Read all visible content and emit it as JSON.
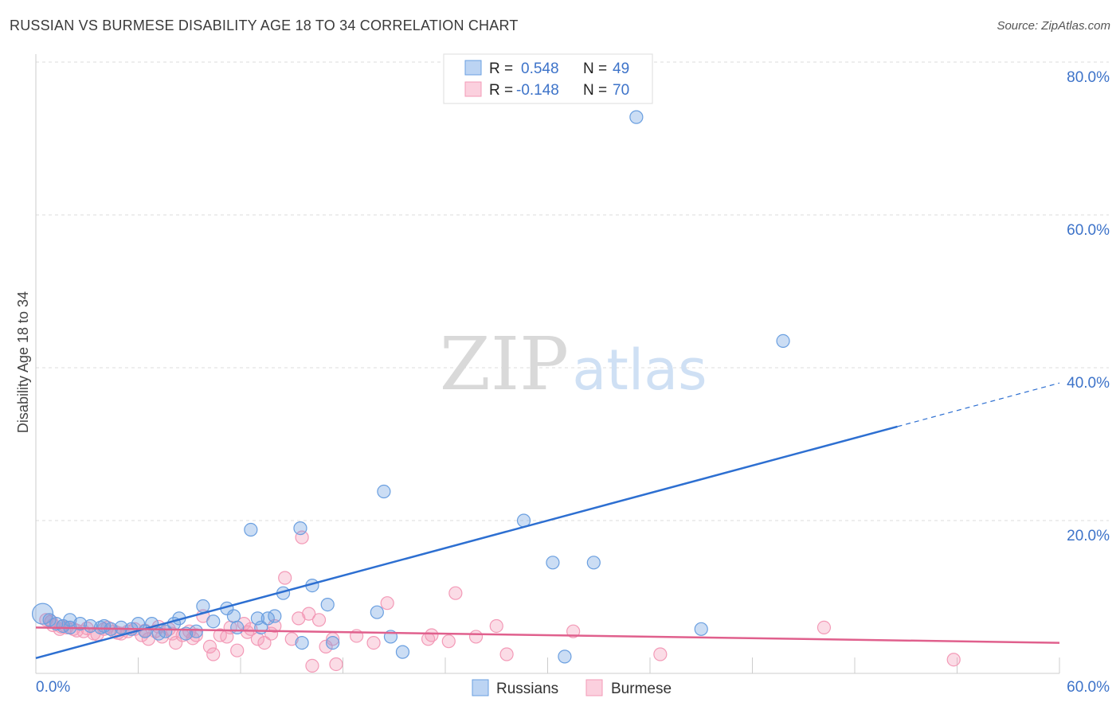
{
  "title": "RUSSIAN VS BURMESE DISABILITY AGE 18 TO 34 CORRELATION CHART",
  "source": "Source: ZipAtlas.com",
  "watermark": {
    "zip": "ZIP",
    "atlas": "atlas"
  },
  "legend_top": {
    "rows": [
      {
        "r_label": "R =",
        "r_value": "0.548",
        "n_label": "N =",
        "n_value": "49"
      },
      {
        "r_label": "R =",
        "r_value": "-0.148",
        "n_label": "N =",
        "n_value": "70"
      }
    ]
  },
  "legend_bottom": {
    "items": [
      "Russians",
      "Burmese"
    ]
  },
  "chart_data": {
    "type": "scatter",
    "title": "RUSSIAN VS BURMESE DISABILITY AGE 18 TO 34 CORRELATION CHART",
    "xlabel": "",
    "ylabel": "Disability Age 18 to 34",
    "xlim": [
      0,
      60
    ],
    "ylim": [
      0,
      80
    ],
    "x_tick_labels": {
      "min": "0.0%",
      "max": "60.0%"
    },
    "y_tick_values": [
      20,
      40,
      60,
      80
    ],
    "y_tick_labels": [
      "20.0%",
      "40.0%",
      "60.0%",
      "80.0%"
    ],
    "colors": {
      "russians": "#6a9fe0",
      "russians_line": "#2d6fd1",
      "burmese": "#f39ab7",
      "burmese_line": "#e0608d",
      "axis_label": "#3d73c9",
      "grid": "#dcdcdc"
    },
    "series": [
      {
        "name": "Russians",
        "r": 0.548,
        "n": 49,
        "trend": {
          "x0": 0,
          "y0": 2.0,
          "x1": 60,
          "y1": 38.0,
          "solid_until": 50.5
        },
        "points": [
          [
            0.4,
            7.8
          ],
          [
            0.8,
            7.0
          ],
          [
            1.2,
            6.5
          ],
          [
            1.6,
            6.2
          ],
          [
            2.0,
            6.0
          ],
          [
            2.6,
            6.5
          ],
          [
            3.2,
            6.2
          ],
          [
            3.8,
            6.0
          ],
          [
            4.4,
            5.8
          ],
          [
            5.0,
            6.0
          ],
          [
            5.6,
            5.8
          ],
          [
            6.0,
            6.5
          ],
          [
            6.4,
            5.5
          ],
          [
            6.8,
            6.5
          ],
          [
            7.2,
            5.2
          ],
          [
            7.6,
            5.5
          ],
          [
            8.1,
            6.5
          ],
          [
            8.4,
            7.2
          ],
          [
            8.8,
            5.2
          ],
          [
            9.8,
            8.8
          ],
          [
            10.4,
            6.8
          ],
          [
            11.2,
            8.5
          ],
          [
            11.6,
            7.5
          ],
          [
            11.8,
            6.0
          ],
          [
            12.6,
            18.8
          ],
          [
            13.0,
            7.2
          ],
          [
            13.6,
            7.2
          ],
          [
            14.0,
            7.5
          ],
          [
            14.5,
            10.5
          ],
          [
            15.5,
            19.0
          ],
          [
            15.6,
            4.0
          ],
          [
            16.2,
            11.5
          ],
          [
            17.1,
            9.0
          ],
          [
            17.4,
            4.0
          ],
          [
            20.0,
            8.0
          ],
          [
            20.4,
            23.8
          ],
          [
            20.8,
            4.8
          ],
          [
            21.5,
            2.8
          ],
          [
            28.6,
            20.0
          ],
          [
            30.3,
            14.5
          ],
          [
            31.0,
            2.2
          ],
          [
            32.7,
            14.5
          ],
          [
            35.2,
            72.8
          ],
          [
            39.0,
            5.8
          ],
          [
            43.8,
            43.5
          ],
          [
            2.0,
            7.0
          ],
          [
            4.0,
            6.2
          ],
          [
            9.4,
            5.5
          ],
          [
            13.2,
            6.0
          ]
        ]
      },
      {
        "name": "Burmese",
        "r": -0.148,
        "n": 70,
        "trend": {
          "x0": 0,
          "y0": 6.0,
          "x1": 60,
          "y1": 4.0
        },
        "points": [
          [
            0.6,
            7.0
          ],
          [
            1.0,
            6.3
          ],
          [
            1.4,
            5.8
          ],
          [
            1.8,
            6.0
          ],
          [
            2.2,
            5.8
          ],
          [
            2.8,
            5.5
          ],
          [
            3.4,
            5.2
          ],
          [
            4.0,
            5.8
          ],
          [
            4.6,
            5.5
          ],
          [
            5.0,
            5.2
          ],
          [
            5.4,
            5.5
          ],
          [
            5.8,
            5.8
          ],
          [
            6.2,
            5.0
          ],
          [
            6.6,
            4.5
          ],
          [
            7.0,
            5.5
          ],
          [
            7.4,
            4.8
          ],
          [
            7.8,
            5.8
          ],
          [
            8.2,
            4.0
          ],
          [
            8.6,
            5.0
          ],
          [
            9.0,
            5.5
          ],
          [
            9.4,
            5.0
          ],
          [
            9.8,
            7.5
          ],
          [
            10.2,
            3.5
          ],
          [
            10.4,
            2.5
          ],
          [
            10.8,
            5.0
          ],
          [
            11.2,
            4.8
          ],
          [
            11.4,
            6.0
          ],
          [
            11.8,
            3.0
          ],
          [
            12.2,
            6.5
          ],
          [
            12.6,
            5.8
          ],
          [
            13.0,
            4.5
          ],
          [
            13.4,
            4.0
          ],
          [
            13.8,
            5.2
          ],
          [
            14.0,
            6.2
          ],
          [
            14.6,
            12.5
          ],
          [
            15.0,
            4.5
          ],
          [
            15.4,
            7.2
          ],
          [
            15.6,
            17.8
          ],
          [
            16.0,
            7.8
          ],
          [
            16.2,
            1.0
          ],
          [
            16.6,
            7.0
          ],
          [
            17.0,
            3.5
          ],
          [
            17.4,
            4.5
          ],
          [
            17.6,
            1.2
          ],
          [
            19.8,
            4.0
          ],
          [
            20.6,
            9.2
          ],
          [
            23.0,
            4.5
          ],
          [
            23.2,
            5.0
          ],
          [
            24.2,
            4.2
          ],
          [
            24.6,
            10.5
          ],
          [
            25.8,
            4.8
          ],
          [
            27.0,
            6.2
          ],
          [
            27.6,
            2.5
          ],
          [
            31.5,
            5.5
          ],
          [
            36.6,
            2.5
          ],
          [
            46.2,
            6.0
          ],
          [
            53.8,
            1.8
          ],
          [
            0.9,
            6.8
          ],
          [
            1.5,
            6.1
          ],
          [
            2.4,
            5.6
          ],
          [
            3.0,
            5.9
          ],
          [
            3.6,
            5.1
          ],
          [
            4.2,
            6.0
          ],
          [
            4.8,
            5.3
          ],
          [
            6.4,
            5.6
          ],
          [
            7.2,
            6.1
          ],
          [
            8.0,
            5.2
          ],
          [
            9.2,
            4.6
          ],
          [
            12.4,
            5.4
          ],
          [
            18.8,
            4.9
          ]
        ]
      }
    ]
  }
}
